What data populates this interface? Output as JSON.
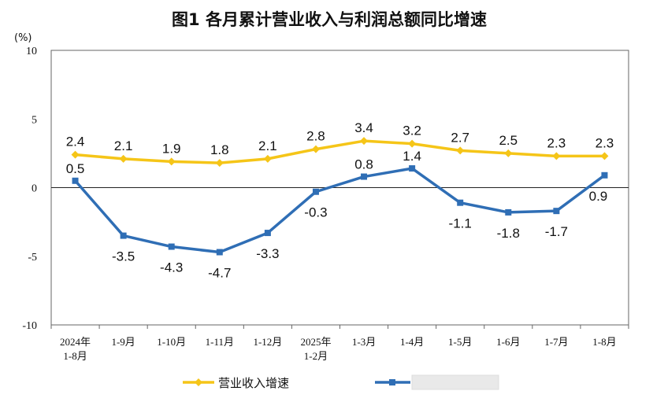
{
  "chart_data": {
    "type": "line",
    "title": "图1  各月累计营业收入与利润总额同比增速",
    "unit_label": "(%)",
    "categories": [
      [
        "2024年",
        "1-8月"
      ],
      [
        "1-9月"
      ],
      [
        "1-10月"
      ],
      [
        "1-11月"
      ],
      [
        "1-12月"
      ],
      [
        "2025年",
        "1-2月"
      ],
      [
        "1-3月"
      ],
      [
        "1-4月"
      ],
      [
        "1-5月"
      ],
      [
        "1-6月"
      ],
      [
        "1-7月"
      ],
      [
        "1-8月"
      ]
    ],
    "ylim": [
      -10,
      10
    ],
    "yticks": [
      10,
      5,
      0,
      -5,
      -10
    ],
    "grid": false,
    "legend_position": "bottom",
    "series": [
      {
        "name": "营业收入增速",
        "color": "#F5C518",
        "marker": "diamond",
        "values": [
          2.4,
          2.1,
          1.9,
          1.8,
          2.1,
          2.8,
          3.4,
          3.2,
          2.7,
          2.5,
          2.3,
          2.3
        ],
        "labels": [
          "2.4",
          "2.1",
          "1.9",
          "1.8",
          "2.1",
          "2.8",
          "3.4",
          "3.2",
          "2.7",
          "2.5",
          "2.3",
          "2.3"
        ]
      },
      {
        "name": "",
        "color": "#2F6EB5",
        "marker": "square",
        "values": [
          0.5,
          -3.5,
          -4.3,
          -4.7,
          -3.3,
          -0.3,
          0.8,
          1.4,
          -1.1,
          -1.8,
          -1.7,
          0.9
        ],
        "labels": [
          "0.5",
          "-3.5",
          "-4.3",
          "-4.7",
          "-3.3",
          "-0.3",
          "0.8",
          "1.4",
          "-1.1",
          "-1.8",
          "-1.7",
          "0.9"
        ]
      }
    ]
  }
}
